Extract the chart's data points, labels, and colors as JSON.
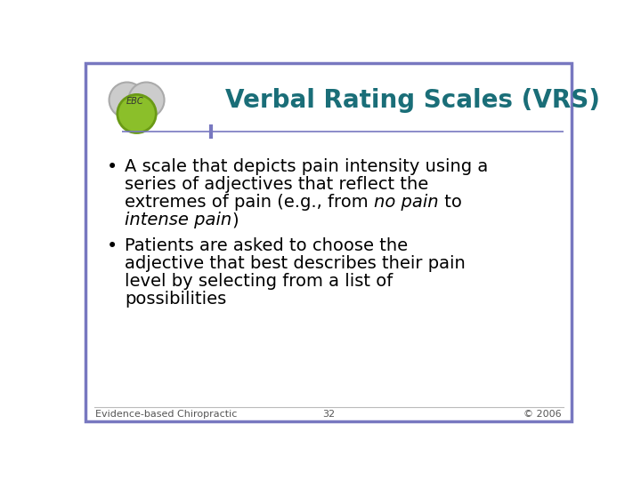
{
  "title": "Verbal Rating Scales (VRS)",
  "title_color": "#1A6E78",
  "title_fontsize": 20,
  "border_color": "#7878C0",
  "background_color": "#FFFFFF",
  "footer_left": "Evidence-based Chiropractic",
  "footer_center": "32",
  "footer_right": "© 2006",
  "footer_color": "#555555",
  "footer_fontsize": 8,
  "text_fontsize": 14,
  "bullet_color": "#000000",
  "separator_color": "#7878C0",
  "line1_b1": "A scale that depicts pain intensity using a",
  "line2_b1": "series of adjectives that reflect the",
  "line3_b1_pre": "extremes of pain (e.g., from ",
  "line3_b1_italic": "no pain",
  "line3_b1_post": " to",
  "line4_b1_italic": "intense pain",
  "line4_b1_post": ")",
  "line1_b2": "Patients are asked to choose the",
  "line2_b2": "adjective that best describes their pain",
  "line3_b2": "level by selecting from a list of",
  "line4_b2": "possibilities"
}
